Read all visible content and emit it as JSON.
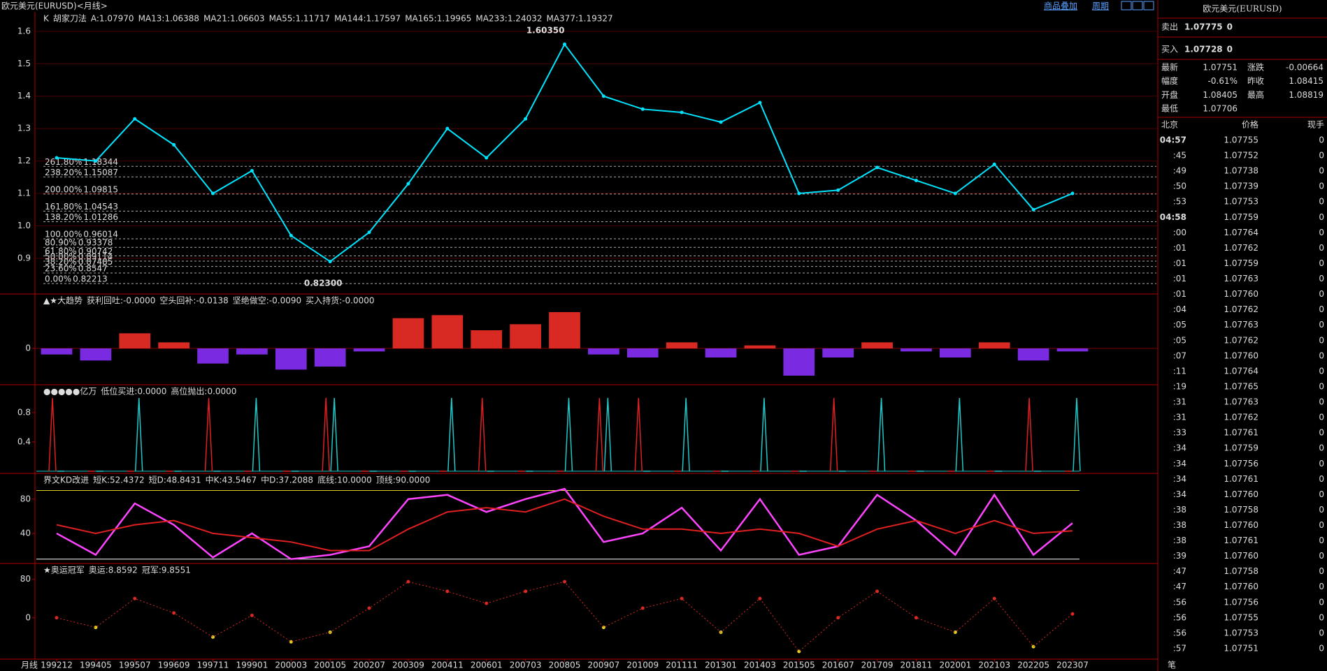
{
  "header": {
    "title": "欧元美元(EURUSD)<月线>",
    "links": [
      "商品叠加",
      "周期"
    ]
  },
  "x_labels": [
    "199212",
    "199405",
    "199507",
    "199609",
    "199711",
    "199901",
    "200003",
    "200105",
    "200207",
    "200309",
    "200411",
    "200601",
    "200703",
    "200805",
    "200907",
    "201009",
    "201111",
    "201301",
    "201403",
    "201505",
    "201607",
    "201709",
    "201811",
    "202001",
    "202103",
    "202205",
    "202307"
  ],
  "period_label": "月线",
  "main": {
    "legend": [
      {
        "text": "K",
        "color": "#ffffff"
      },
      {
        "text": "胡家刀法",
        "color": "#ffffff"
      },
      {
        "text": "A:1.07970",
        "color": "#ff3030"
      },
      {
        "text": "MA13:1.06388",
        "color": "#ffffff"
      },
      {
        "text": "MA21:1.06603",
        "color": "#ffff00"
      },
      {
        "text": "MA55:1.11717",
        "color": "#ff33ff"
      },
      {
        "text": "MA144:1.17597",
        "color": "#33cc33"
      },
      {
        "text": "MA165:1.19965",
        "color": "#9999ff"
      },
      {
        "text": "MA233:1.24032",
        "color": "#ff9900"
      },
      {
        "text": "MA377:1.19327",
        "color": "#33aaff"
      }
    ],
    "ylim": [
      0.79,
      1.66
    ],
    "yticks": [
      1.6,
      1.5,
      1.4,
      1.3,
      1.2,
      1.1,
      {
        "value": 1,
        "label": "1.0"
      },
      0.9
    ],
    "closes": [
      1.21,
      1.2,
      1.33,
      1.25,
      1.1,
      1.17,
      0.97,
      0.89,
      0.98,
      1.13,
      1.3,
      1.21,
      1.33,
      1.56,
      1.4,
      1.36,
      1.35,
      1.32,
      1.38,
      1.1,
      1.11,
      1.18,
      1.14,
      1.1,
      1.19,
      1.05,
      1.1
    ],
    "color": "#00e5ff",
    "high_label": "1.60350",
    "low_label": "0.82300",
    "fib": [
      {
        "pct": "261.80%",
        "value": 1.18344
      },
      {
        "pct": "238.20%",
        "value": 1.15087
      },
      {
        "pct": "200.00%",
        "value": 1.09815
      },
      {
        "pct": "161.80%",
        "value": 1.04543
      },
      {
        "pct": "138.20%",
        "value": 1.01286
      },
      {
        "pct": "100.00%",
        "value": 0.96014
      },
      {
        "pct": "80.90%",
        "value": 0.93378
      },
      {
        "pct": "61.80%",
        "value": 0.90742
      },
      {
        "pct": "50.00%",
        "value": 0.89114
      },
      {
        "pct": "38.20%",
        "value": 0.87485
      },
      {
        "pct": "23.60%",
        "value": 0.8547
      },
      {
        "pct": "0.00%",
        "value": 0.82213
      }
    ]
  },
  "trend": {
    "legend": [
      {
        "text": "▲★大趋势",
        "color": "#ffffff"
      },
      {
        "text": "获利回吐:-0.0000",
        "color": "#ffffff"
      },
      {
        "text": "空头回补:-0.0138",
        "color": "#33dddd"
      },
      {
        "text": "坚绝做空:-0.0090",
        "color": "#8a4bff"
      },
      {
        "text": "买入持货:-0.0000",
        "color": "#ff3030"
      }
    ],
    "ylim": [
      -0.6,
      0.9
    ],
    "yticks": [
      0
    ],
    "values": [
      -0.1,
      -0.2,
      0.25,
      0.1,
      -0.25,
      -0.1,
      -0.35,
      -0.3,
      -0.05,
      0.5,
      0.55,
      0.3,
      0.4,
      0.6,
      -0.1,
      -0.15,
      0.1,
      -0.15,
      0.05,
      -0.45,
      -0.15,
      0.1,
      -0.05,
      -0.15,
      0.1,
      -0.2,
      -0.05
    ],
    "up_color": "#d82a22",
    "down_color": "#7a2be2"
  },
  "signals": {
    "legend": [
      {
        "text": "●●●●●亿万",
        "color": "#ffffff"
      },
      {
        "text": "低位买进:0.0000",
        "color": "#ff3030"
      },
      {
        "text": "高位抛出:0.0000",
        "color": "#33dddd"
      }
    ],
    "ylim": [
      -0.03,
      1.18
    ],
    "yticks": [
      0.8,
      0.4
    ],
    "series": [
      {
        "color": "#e02020",
        "values": [
          1,
          0,
          0,
          0,
          1,
          0,
          0,
          1,
          0,
          0,
          0,
          1,
          0,
          0,
          1,
          1,
          0,
          0,
          0,
          0,
          1,
          0,
          0,
          0,
          0,
          1,
          0
        ]
      },
      {
        "color": "#20c8c8",
        "values": [
          0,
          0,
          1,
          0,
          0,
          1,
          0,
          1,
          0,
          0,
          1,
          0,
          0,
          1,
          1,
          0,
          1,
          0,
          1,
          0,
          0,
          1,
          0,
          1,
          0,
          0,
          1
        ]
      }
    ]
  },
  "kd": {
    "legend": [
      {
        "text": "界文KD改进",
        "color": "#ffffff"
      },
      {
        "text": "短K:52.4372",
        "color": "#ff44ff"
      },
      {
        "text": "短D:48.8431",
        "color": "#33dddd"
      },
      {
        "text": "中K:43.5467",
        "color": "#ff3030"
      },
      {
        "text": "中D:37.2088",
        "color": "#33cc33"
      },
      {
        "text": "底线:10.0000",
        "color": "#ffffff"
      },
      {
        "text": "顶线:90.0000",
        "color": "#ffff00"
      }
    ],
    "ylim": [
      4.9,
      110
    ],
    "yticks": [
      80,
      40
    ],
    "floor": 10,
    "ceiling": 90,
    "series": [
      {
        "color": "#ff44ff",
        "values": [
          40,
          15,
          75,
          50,
          12,
          40,
          10,
          15,
          25,
          80,
          85,
          65,
          80,
          92,
          30,
          40,
          70,
          20,
          80,
          15,
          25,
          85,
          55,
          15,
          85,
          15,
          52
        ]
      },
      {
        "color": "#e02020",
        "values": [
          50,
          40,
          50,
          55,
          40,
          35,
          30,
          20,
          20,
          45,
          65,
          70,
          65,
          80,
          60,
          45,
          45,
          40,
          45,
          40,
          25,
          45,
          55,
          40,
          55,
          40,
          43
        ]
      }
    ]
  },
  "olympic": {
    "legend": [
      {
        "text": "★奥运冠军",
        "color": "#ffffff"
      },
      {
        "text": "奥运:8.8592",
        "color": "#ffffff"
      },
      {
        "text": "冠军:9.8551",
        "color": "#ffff00"
      }
    ],
    "ylim": [
      -86,
      113
    ],
    "yticks": [
      80,
      0
    ],
    "values": [
      0,
      -20,
      40,
      10,
      -40,
      5,
      -50,
      -30,
      20,
      75,
      55,
      30,
      55,
      75,
      -20,
      20,
      40,
      -30,
      40,
      -70,
      0,
      55,
      0,
      -30,
      40,
      -60,
      8
    ],
    "up_color": "#d82a22",
    "down_color": "#e0d020"
  },
  "quote": {
    "title": "欧元美元(EURUSD)",
    "bid": {
      "label": "卖出",
      "price": "1.07775",
      "volume": "0"
    },
    "ask": {
      "label": "买入",
      "price": "1.07728",
      "volume": "0"
    },
    "stats": [
      [
        "最新",
        "1.07751",
        "涨跌",
        "-0.00664"
      ],
      [
        "幅度",
        "-0.61%",
        "昨收",
        "1.08415"
      ],
      [
        "开盘",
        "1.08405",
        "最高",
        "1.08819"
      ],
      [
        "最低",
        "1.07706"
      ]
    ],
    "ticks_header": [
      "北京",
      "价格",
      "现手"
    ],
    "ticks": [
      [
        "04:57",
        "1.07755",
        "0"
      ],
      [
        ":45",
        "1.07752",
        "0"
      ],
      [
        ":49",
        "1.07738",
        "0"
      ],
      [
        ":50",
        "1.07739",
        "0"
      ],
      [
        ":53",
        "1.07753",
        "0"
      ],
      [
        "04:58",
        "1.07759",
        "0"
      ],
      [
        ":00",
        "1.07764",
        "0"
      ],
      [
        ":01",
        "1.07762",
        "0"
      ],
      [
        ":01",
        "1.07759",
        "0"
      ],
      [
        ":01",
        "1.07763",
        "0"
      ],
      [
        ":01",
        "1.07760",
        "0"
      ],
      [
        ":04",
        "1.07762",
        "0"
      ],
      [
        ":05",
        "1.07763",
        "0"
      ],
      [
        ":05",
        "1.07762",
        "0"
      ],
      [
        ":07",
        "1.07760",
        "0"
      ],
      [
        ":11",
        "1.07764",
        "0"
      ],
      [
        ":19",
        "1.07765",
        "0"
      ],
      [
        ":31",
        "1.07763",
        "0"
      ],
      [
        ":31",
        "1.07762",
        "0"
      ],
      [
        ":33",
        "1.07761",
        "0"
      ],
      [
        ":34",
        "1.07759",
        "0"
      ],
      [
        ":34",
        "1.07756",
        "0"
      ],
      [
        ":34",
        "1.07761",
        "0"
      ],
      [
        ":34",
        "1.07760",
        "0"
      ],
      [
        ":38",
        "1.07758",
        "0"
      ],
      [
        ":38",
        "1.07760",
        "0"
      ],
      [
        ":38",
        "1.07761",
        "0"
      ],
      [
        ":39",
        "1.07760",
        "0"
      ],
      [
        ":47",
        "1.07758",
        "0"
      ],
      [
        ":47",
        "1.07760",
        "0"
      ],
      [
        ":56",
        "1.07756",
        "0"
      ],
      [
        ":56",
        "1.07755",
        "0"
      ],
      [
        ":56",
        "1.07753",
        "0"
      ],
      [
        ":57",
        "1.07751",
        "0"
      ]
    ],
    "bottom_tab": "笔"
  }
}
